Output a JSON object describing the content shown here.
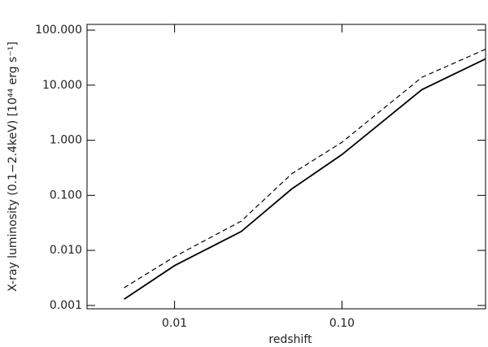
{
  "chart_data": {
    "type": "line",
    "x_label": "redshift",
    "y_label": "X-ray luminosity (0.1−2.4keV) [10⁴⁴  erg s⁻¹]",
    "x": [
      0.005,
      0.01,
      0.025,
      0.05,
      0.1,
      0.3,
      0.72
    ],
    "series": [
      {
        "color": "#000000",
        "linestyle": "solid",
        "values": [
          0.0013,
          0.0053,
          0.022,
          0.13,
          0.55,
          8.3,
          30
        ]
      },
      {
        "color": "#000000",
        "linestyle": "dashed",
        "values": [
          0.0021,
          0.0077,
          0.034,
          0.245,
          0.92,
          13.9,
          45
        ]
      }
    ],
    "xscale": "log",
    "yscale": "log",
    "xlim": [
      0.003,
      0.72
    ],
    "ylim": [
      0.00087,
      127
    ],
    "xticks": [
      0.01,
      {
        "value": 0.1,
        "label": "0.10"
      }
    ],
    "yticks": [
      {
        "value": 0.001,
        "label": "0.001"
      },
      {
        "value": 0.01,
        "label": "0.010"
      },
      {
        "value": 0.1,
        "label": "0.100"
      },
      {
        "value": 1,
        "label": "1.000"
      },
      {
        "value": 10,
        "label": "10.000"
      },
      {
        "value": 100,
        "label": "100.000"
      }
    ]
  }
}
